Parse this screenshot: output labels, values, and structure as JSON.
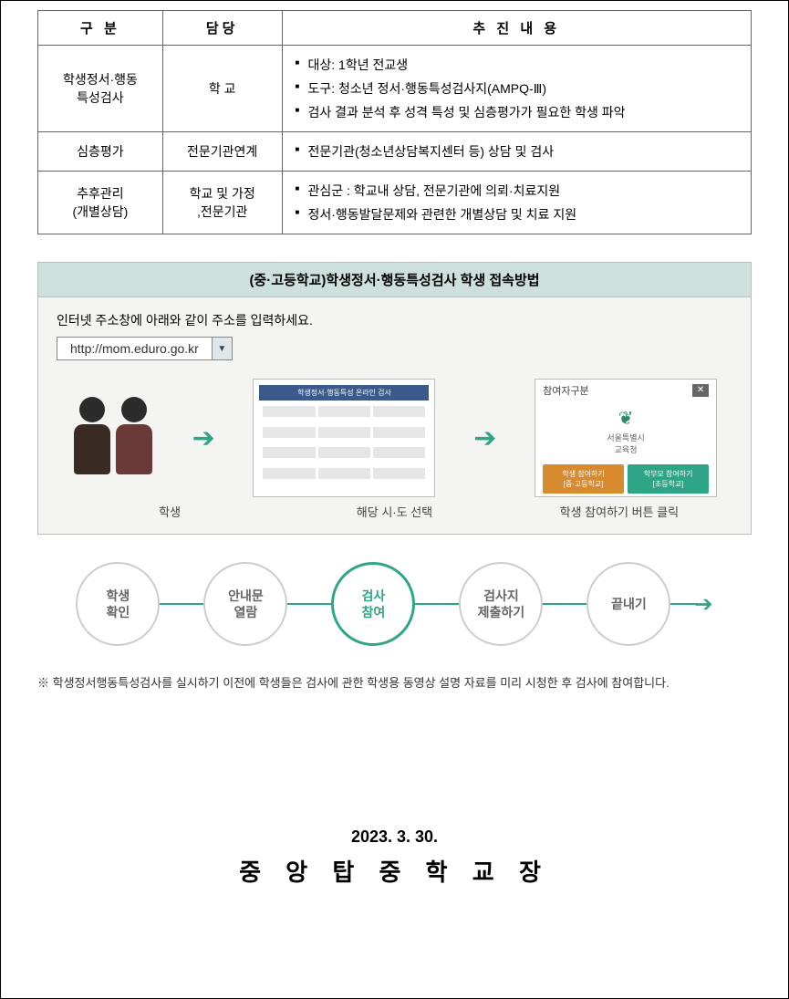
{
  "table": {
    "headers": [
      "구 분",
      "담당",
      "추 진 내 용"
    ],
    "rows": [
      {
        "c1": "학생정서·행동\n특성검사",
        "c2": "학  교",
        "items": [
          "대상: 1학년 전교생",
          "도구: 청소년 정서·행동특성검사지(AMPQ-Ⅲ)",
          "검사 결과 분석 후 성격 특성 및 심층평가가 필요한 학생 파악"
        ]
      },
      {
        "c1": "심층평가",
        "c2": "전문기관연계",
        "items": [
          "전문기관(청소년상담복지센터 등) 상담 및 검사"
        ]
      },
      {
        "c1": "추후관리\n(개별상담)",
        "c2": "학교 및 가정\n,전문기관",
        "items": [
          "관심군 : 학교내 상담, 전문기관에 의뢰·치료지원",
          "정서·행동발달문제와 관련한 개별상담 및 치료 지원"
        ]
      }
    ]
  },
  "panel": {
    "title": "(중·고등학교)학생정서·행동특성검사 학생 접속방법",
    "instruction": "인터넷 주소창에 아래와 같이 주소를 입력하세요.",
    "url": "http://mom.eduro.go.kr",
    "people": [
      {
        "head": "#2b2b2b",
        "body": "#3a2a24"
      },
      {
        "head": "#2b2b2b",
        "body": "#6a3a36"
      }
    ],
    "siteCard": {
      "bar": "학생정서·행동특성 온라인 검사",
      "barColor": "#3b5a8a"
    },
    "clickCard": {
      "topLabel": "참여자구분",
      "logoColor": "#2a8a6a",
      "logoText": "서울특별시\n교육청",
      "btn1": {
        "text": "학생 참여하기\n[중·고등학교]",
        "bg": "#d88a2e"
      },
      "btn2": {
        "text": "학부모 참여하기\n[초등학교]",
        "bg": "#2fa587"
      }
    },
    "labels": [
      "학생",
      "해당 시·도 선택",
      "학생 참여하기 버튼 클릭"
    ],
    "arrowColor": "#2fa587"
  },
  "steps": {
    "items": [
      "학생\n확인",
      "안내문\n열람",
      "검사\n참여",
      "검사지\n제출하기",
      "끝내기"
    ],
    "activeIndex": 2,
    "lineColor": "#2fa587",
    "inactiveBorder": "#cccccc",
    "activeColor": "#2fa587"
  },
  "note": "※ 학생정서행동특성검사를 실시하기 이전에 학생들은 검사에 관한 학생용 동영상 설명 자료를 미리 시청한 후 검사에 참여합니다.",
  "footer": {
    "date": "2023. 3. 30.",
    "sign": "중 앙 탑 중 학 교 장"
  }
}
